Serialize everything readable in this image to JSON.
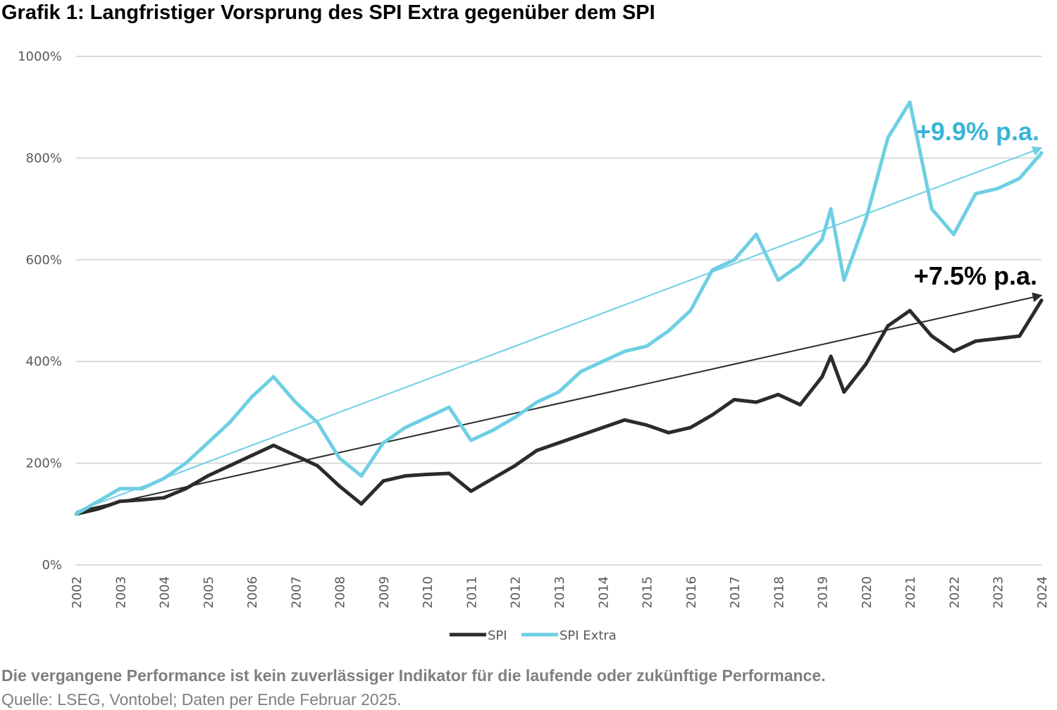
{
  "title": "Grafik 1: Langfristiger Vorsprung des SPI Extra gegenüber dem SPI",
  "footnote": "Die vergangene Performance ist kein zuverlässiger Indikator für die laufende oder zukünftige Performance.",
  "source": "Quelle: LSEG, Vontobel; Daten per Ende Februar 2025.",
  "chart_data": {
    "type": "line",
    "x": [
      2002,
      2002.5,
      2003,
      2003.5,
      2004,
      2004.5,
      2005,
      2005.5,
      2006,
      2006.5,
      2007,
      2007.5,
      2008,
      2008.5,
      2009,
      2009.5,
      2010,
      2010.5,
      2011,
      2011.5,
      2012,
      2012.5,
      2013,
      2013.5,
      2014,
      2014.5,
      2015,
      2015.5,
      2016,
      2016.5,
      2017,
      2017.5,
      2018,
      2018.5,
      2019,
      2019.2,
      2019.5,
      2020,
      2020.5,
      2021,
      2021.5,
      2022,
      2022.5,
      2023,
      2023.5,
      2024
    ],
    "series": [
      {
        "name": "SPI",
        "color": "#2b2b2b",
        "values": [
          100,
          110,
          125,
          128,
          132,
          150,
          175,
          195,
          215,
          235,
          215,
          195,
          155,
          120,
          165,
          175,
          178,
          180,
          145,
          170,
          195,
          225,
          240,
          255,
          270,
          285,
          275,
          260,
          270,
          295,
          325,
          320,
          335,
          315,
          370,
          410,
          340,
          395,
          470,
          500,
          450,
          420,
          440,
          445,
          450,
          520
        ]
      },
      {
        "name": "SPI Extra",
        "color": "#6ecfe3",
        "values": [
          100,
          125,
          150,
          150,
          170,
          200,
          240,
          280,
          330,
          370,
          320,
          280,
          210,
          175,
          240,
          270,
          290,
          310,
          245,
          265,
          290,
          320,
          340,
          380,
          400,
          420,
          430,
          460,
          500,
          580,
          600,
          650,
          560,
          590,
          640,
          700,
          560,
          680,
          840,
          910,
          700,
          650,
          730,
          740,
          760,
          810
        ]
      }
    ],
    "trendlines": [
      {
        "series": "SPI",
        "label": "+7.5% p.a.",
        "from": [
          2002,
          105
        ],
        "to": [
          2024,
          530
        ],
        "color": "#2b2b2b"
      },
      {
        "series": "SPI Extra",
        "label": "+9.9% p.a.",
        "from": [
          2002,
          105
        ],
        "to": [
          2024,
          820
        ],
        "color": "#6ecfe3"
      }
    ],
    "ylim": [
      0,
      1000
    ],
    "yticks": [
      "0%",
      "200%",
      "400%",
      "600%",
      "800%",
      "1000%"
    ],
    "xticks": [
      "2002",
      "2003",
      "2004",
      "2005",
      "2006",
      "2007",
      "2008",
      "2009",
      "2010",
      "2011",
      "2012",
      "2013",
      "2014",
      "2015",
      "2016",
      "2017",
      "2018",
      "2019",
      "2020",
      "2021",
      "2022",
      "2023",
      "2024"
    ],
    "grid": "horizontal",
    "legend_position": "bottom-center",
    "legend": [
      "SPI",
      "SPI Extra"
    ]
  }
}
